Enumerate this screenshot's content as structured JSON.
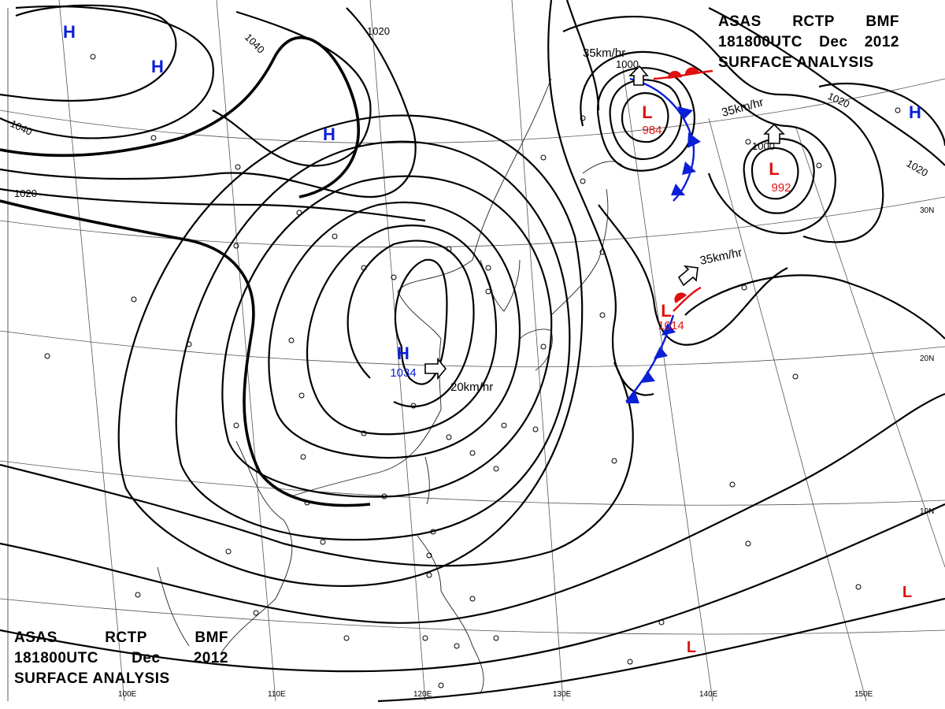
{
  "title": {
    "agency": "ASAS",
    "station": "RCTP",
    "office": "BMF",
    "time": "181800UTC",
    "month": "Dec",
    "year": "2012",
    "product": "SURFACE ANALYSIS"
  },
  "colors": {
    "high": "#0a1fd6",
    "low": "#e01010",
    "line": "#000000",
    "grid": "#555555"
  },
  "pressure_systems": [
    {
      "type": "H",
      "value": ""
    },
    {
      "type": "H",
      "value": ""
    },
    {
      "type": "H",
      "value": ""
    },
    {
      "type": "H",
      "value": "1034"
    },
    {
      "type": "H",
      "value": ""
    },
    {
      "type": "L",
      "value": "984"
    },
    {
      "type": "L",
      "value": "992"
    },
    {
      "type": "L",
      "value": "1014"
    },
    {
      "type": "L",
      "value": ""
    },
    {
      "type": "L",
      "value": ""
    }
  ],
  "isobar_labels": [
    "1040",
    "1020",
    "1040",
    "1020",
    "1000",
    "1000",
    "1020",
    "1020"
  ],
  "movement_labels": [
    "35km/hr",
    "35km/hr",
    "35km/hr",
    "20km/hr"
  ],
  "longitude_labels": [
    "100E",
    "110E",
    "120E",
    "130E",
    "140E",
    "150E"
  ],
  "latitude_labels": [
    "30N",
    "20N",
    "10N"
  ]
}
